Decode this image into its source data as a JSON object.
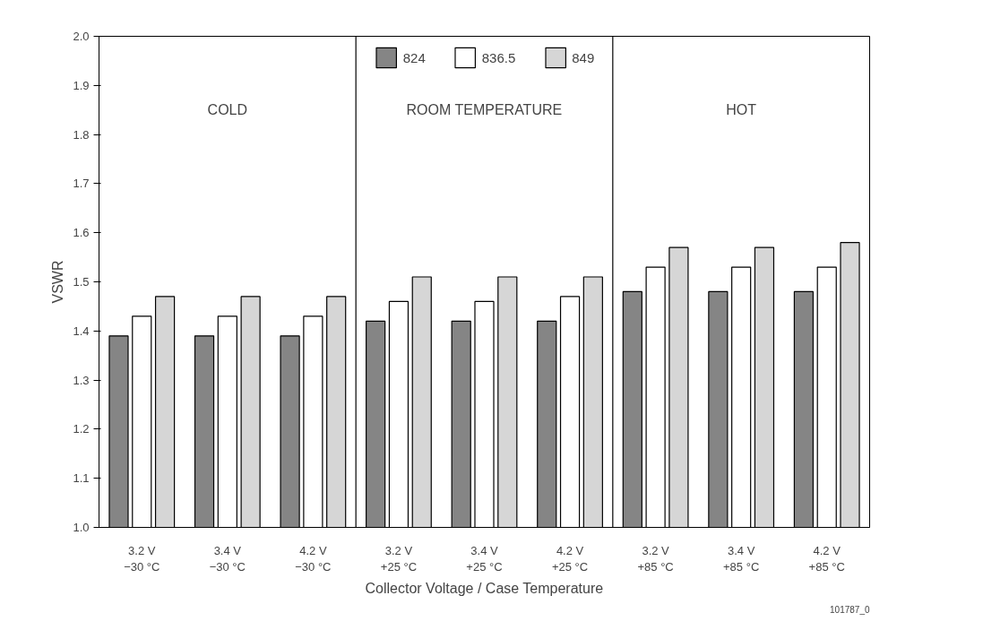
{
  "chart_data": {
    "type": "bar",
    "xlabel": "Collector Voltage / Case Temperature",
    "ylabel": "VSWR",
    "categories": [
      "3.2 V\n−30 °C",
      "3.4 V\n−30 °C",
      "4.2 V\n−30 °C",
      "3.2 V\n+25 °C",
      "3.4 V\n+25 °C",
      "4.2 V\n+25 °C",
      "3.2 V\n+85 °C",
      "3.4 V\n+85 °C",
      "4.2 V\n+85 °C"
    ],
    "series": [
      {
        "name": "824",
        "color": "#858585",
        "values": [
          1.39,
          1.39,
          1.39,
          1.42,
          1.42,
          1.42,
          1.48,
          1.48,
          1.48
        ]
      },
      {
        "name": "836.5",
        "color": "#ffffff",
        "values": [
          1.43,
          1.43,
          1.43,
          1.46,
          1.46,
          1.47,
          1.53,
          1.53,
          1.53
        ]
      },
      {
        "name": "849",
        "color": "#d6d6d6",
        "values": [
          1.47,
          1.47,
          1.47,
          1.51,
          1.51,
          1.51,
          1.57,
          1.57,
          1.58
        ]
      }
    ],
    "ylim": [
      1.0,
      2.0
    ],
    "yticks": [
      {
        "value": 1.0,
        "label": "1.0"
      },
      1.1,
      1.2,
      1.3,
      1.4,
      1.5,
      1.6,
      1.7,
      1.8,
      1.9,
      {
        "value": 2.0,
        "label": "2.0"
      }
    ],
    "annotations": [
      "COLD",
      "ROOM TEMPERATURE",
      "HOT",
      "101787_0"
    ],
    "grid": false,
    "legend": "top"
  }
}
